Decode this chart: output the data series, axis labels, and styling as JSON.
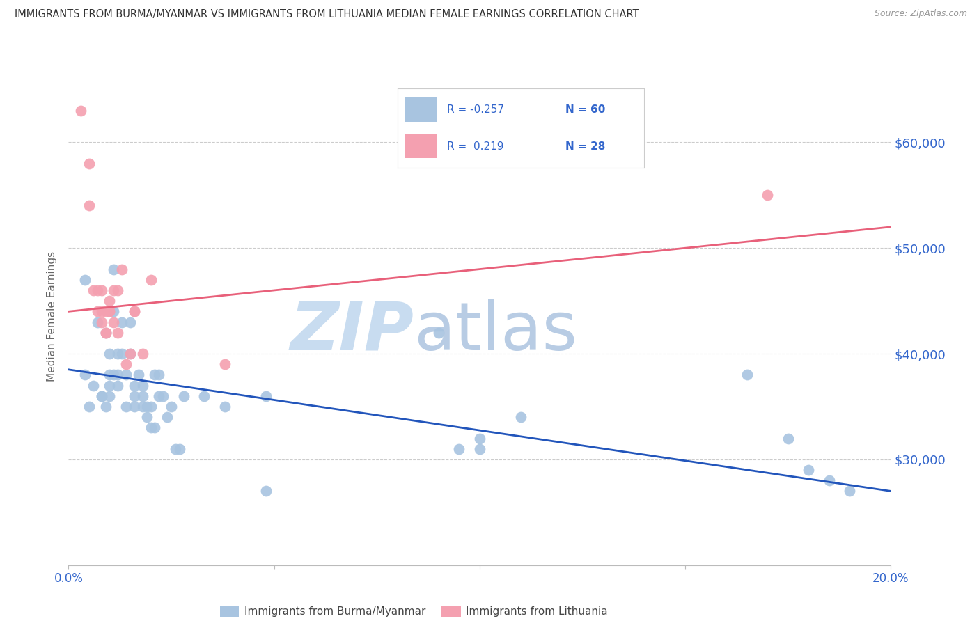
{
  "title": "IMMIGRANTS FROM BURMA/MYANMAR VS IMMIGRANTS FROM LITHUANIA MEDIAN FEMALE EARNINGS CORRELATION CHART",
  "source": "Source: ZipAtlas.com",
  "ylabel": "Median Female Earnings",
  "xlim": [
    0.0,
    0.2
  ],
  "ylim": [
    20000,
    67000
  ],
  "yticks": [
    30000,
    40000,
    50000,
    60000
  ],
  "ytick_labels": [
    "$30,000",
    "$40,000",
    "$50,000",
    "$60,000"
  ],
  "xticks": [
    0.0,
    0.05,
    0.1,
    0.15,
    0.2
  ],
  "xtick_labels": [
    "0.0%",
    "",
    "",
    "",
    "20.0%"
  ],
  "blue_R": -0.257,
  "blue_N": 60,
  "pink_R": 0.219,
  "pink_N": 28,
  "blue_scatter_color": "#A8C4E0",
  "pink_scatter_color": "#F4A0B0",
  "blue_line_color": "#2255BB",
  "pink_line_color": "#E8607A",
  "title_color": "#333333",
  "axis_tick_color": "#3366CC",
  "ylabel_color": "#666666",
  "source_color": "#999999",
  "watermark_ZIP_color": "#C8DCF0",
  "watermark_atlas_color": "#B8CCE4",
  "legend_text_color": "#3366CC",
  "legend_border_color": "#CCCCCC",
  "grid_color": "#CCCCCC",
  "background_color": "#FFFFFF",
  "blue_x": [
    0.004,
    0.004,
    0.005,
    0.006,
    0.007,
    0.008,
    0.008,
    0.009,
    0.009,
    0.01,
    0.01,
    0.01,
    0.01,
    0.011,
    0.011,
    0.011,
    0.012,
    0.012,
    0.012,
    0.013,
    0.013,
    0.014,
    0.014,
    0.015,
    0.015,
    0.016,
    0.016,
    0.016,
    0.017,
    0.018,
    0.018,
    0.018,
    0.019,
    0.019,
    0.02,
    0.02,
    0.021,
    0.021,
    0.022,
    0.022,
    0.023,
    0.024,
    0.025,
    0.026,
    0.027,
    0.028,
    0.033,
    0.038,
    0.048,
    0.048,
    0.09,
    0.095,
    0.1,
    0.1,
    0.11,
    0.165,
    0.175,
    0.18,
    0.185,
    0.19
  ],
  "blue_y": [
    47000,
    38000,
    35000,
    37000,
    43000,
    36000,
    36000,
    35000,
    42000,
    40000,
    38000,
    37000,
    36000,
    48000,
    44000,
    38000,
    40000,
    38000,
    37000,
    43000,
    40000,
    38000,
    35000,
    43000,
    40000,
    37000,
    36000,
    35000,
    38000,
    37000,
    36000,
    35000,
    35000,
    34000,
    35000,
    33000,
    38000,
    33000,
    38000,
    36000,
    36000,
    34000,
    35000,
    31000,
    31000,
    36000,
    36000,
    35000,
    27000,
    36000,
    42000,
    31000,
    31000,
    32000,
    34000,
    38000,
    32000,
    29000,
    28000,
    27000
  ],
  "pink_x": [
    0.003,
    0.005,
    0.005,
    0.006,
    0.007,
    0.007,
    0.008,
    0.008,
    0.008,
    0.009,
    0.009,
    0.009,
    0.01,
    0.01,
    0.01,
    0.011,
    0.011,
    0.012,
    0.012,
    0.013,
    0.014,
    0.015,
    0.016,
    0.016,
    0.018,
    0.02,
    0.038,
    0.17
  ],
  "pink_y": [
    63000,
    58000,
    54000,
    46000,
    46000,
    44000,
    46000,
    44000,
    43000,
    44000,
    42000,
    42000,
    45000,
    44000,
    44000,
    46000,
    43000,
    46000,
    42000,
    48000,
    39000,
    40000,
    44000,
    44000,
    40000,
    47000,
    39000,
    55000
  ],
  "blue_trend_x": [
    0.0,
    0.2
  ],
  "blue_trend_y": [
    38500,
    27000
  ],
  "pink_trend_x": [
    0.0,
    0.2
  ],
  "pink_trend_y": [
    44000,
    52000
  ]
}
